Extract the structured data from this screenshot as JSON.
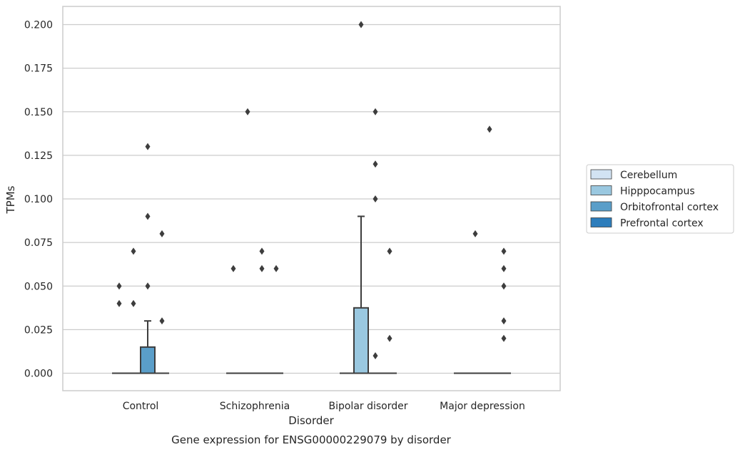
{
  "chart_data": {
    "type": "box",
    "title": "",
    "caption": "Gene expression for ENSG00000229079 by disorder",
    "xlabel": "Disorder",
    "ylabel": "TPMs",
    "ylim": [
      -0.02,
      0.21
    ],
    "yticks": [
      "0.000",
      "0.025",
      "0.050",
      "0.075",
      "0.100",
      "0.125",
      "0.150",
      "0.175",
      "0.200"
    ],
    "ytick_values": [
      0,
      0.025,
      0.05,
      0.075,
      0.1,
      0.125,
      0.15,
      0.175,
      0.2
    ],
    "grid": true,
    "legend_position": "right",
    "categories": [
      "Control",
      "Schizophrenia",
      "Bipolar disorder",
      "Major depression"
    ],
    "series": [
      {
        "name": "Cerebellum",
        "color": "#d2e3f3",
        "boxes": [
          {
            "category": "Control",
            "q1": 0,
            "median": 0,
            "q3": 0,
            "whisker_low": 0,
            "whisker_high": 0,
            "outliers": [
              0.04,
              0.05
            ]
          },
          {
            "category": "Schizophrenia",
            "q1": 0,
            "median": 0,
            "q3": 0,
            "whisker_low": 0,
            "whisker_high": 0,
            "outliers": [
              0.06
            ]
          },
          {
            "category": "Bipolar disorder",
            "q1": 0,
            "median": 0,
            "q3": 0,
            "whisker_low": 0,
            "whisker_high": 0,
            "outliers": []
          },
          {
            "category": "Major depression",
            "q1": 0,
            "median": 0,
            "q3": 0,
            "whisker_low": 0,
            "whisker_high": 0,
            "outliers": []
          }
        ]
      },
      {
        "name": "Hipppocampus",
        "color": "#9ac8e0",
        "boxes": [
          {
            "category": "Control",
            "q1": 0,
            "median": 0,
            "q3": 0,
            "whisker_low": 0,
            "whisker_high": 0,
            "outliers": [
              0.04,
              0.07
            ]
          },
          {
            "category": "Schizophrenia",
            "q1": 0,
            "median": 0,
            "q3": 0,
            "whisker_low": 0,
            "whisker_high": 0,
            "outliers": [
              0.15
            ]
          },
          {
            "category": "Bipolar disorder",
            "q1": 0,
            "median": 0,
            "q3": 0.0375,
            "whisker_low": 0,
            "whisker_high": 0.09,
            "outliers": [
              0.2
            ]
          },
          {
            "category": "Major depression",
            "q1": 0,
            "median": 0,
            "q3": 0,
            "whisker_low": 0,
            "whisker_high": 0,
            "outliers": [
              0.08
            ]
          }
        ]
      },
      {
        "name": "Orbitofrontal cortex",
        "color": "#5a9ec9",
        "boxes": [
          {
            "category": "Control",
            "q1": 0,
            "median": 0,
            "q3": 0.015,
            "whisker_low": 0,
            "whisker_high": 0.03,
            "outliers": [
              0.05,
              0.09,
              0.13
            ]
          },
          {
            "category": "Schizophrenia",
            "q1": 0,
            "median": 0,
            "q3": 0,
            "whisker_low": 0,
            "whisker_high": 0,
            "outliers": [
              0.06,
              0.07
            ]
          },
          {
            "category": "Bipolar disorder",
            "q1": 0,
            "median": 0,
            "q3": 0,
            "whisker_low": 0,
            "whisker_high": 0,
            "outliers": [
              0.01,
              0.1,
              0.12,
              0.15
            ]
          },
          {
            "category": "Major depression",
            "q1": 0,
            "median": 0,
            "q3": 0,
            "whisker_low": 0,
            "whisker_high": 0,
            "outliers": [
              0.14
            ]
          }
        ]
      },
      {
        "name": "Prefrontal cortex",
        "color": "#2d7dbb",
        "boxes": [
          {
            "category": "Control",
            "q1": 0,
            "median": 0,
            "q3": 0,
            "whisker_low": 0,
            "whisker_high": 0,
            "outliers": [
              0.03,
              0.08
            ]
          },
          {
            "category": "Schizophrenia",
            "q1": 0,
            "median": 0,
            "q3": 0,
            "whisker_low": 0,
            "whisker_high": 0,
            "outliers": [
              0.06
            ]
          },
          {
            "category": "Bipolar disorder",
            "q1": 0,
            "median": 0,
            "q3": 0,
            "whisker_low": 0,
            "whisker_high": 0,
            "outliers": [
              0.02,
              0.07
            ]
          },
          {
            "category": "Major depression",
            "q1": 0,
            "median": 0,
            "q3": 0,
            "whisker_low": 0,
            "whisker_high": 0,
            "outliers": [
              0.02,
              0.03,
              0.05,
              0.06,
              0.07
            ]
          }
        ]
      }
    ]
  }
}
